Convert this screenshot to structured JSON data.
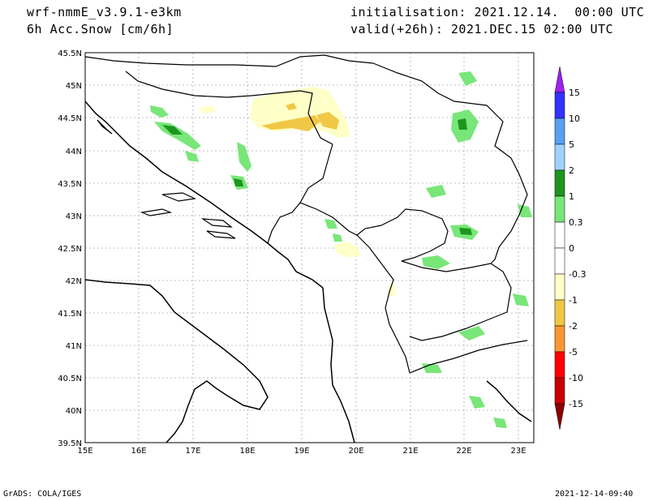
{
  "header": {
    "model": "wrf-nmmE_v3.9.1-e3km",
    "field": "6h Acc.Snow [cm/6h]",
    "init": "initialisation: 2021.12.14.  00:00 UTC",
    "valid": "valid(+26h): 2021.DEC.15 02:00 UTC"
  },
  "footer": {
    "credit": "GrADS: COLA/IGES",
    "timestamp": "2021-12-14-09:40"
  },
  "map": {
    "lat_labels": [
      "45.5N",
      "45N",
      "44.5N",
      "44N",
      "43.5N",
      "43N",
      "42.5N",
      "42N",
      "41.5N",
      "41N",
      "40.5N",
      "40N",
      "39.5N"
    ],
    "lon_labels": [
      "15E",
      "16E",
      "17E",
      "18E",
      "19E",
      "20E",
      "21E",
      "22E",
      "23E"
    ],
    "lat_range": [
      39.5,
      45.5
    ],
    "lon_range": [
      15,
      23.3
    ],
    "grid": true
  },
  "colorbar": {
    "labels": [
      "15",
      "10",
      "5",
      "2",
      "1",
      "0.3",
      "0",
      "-0.3",
      "-1",
      "-2",
      "-5",
      "-10",
      "-15"
    ],
    "colors": [
      "#a020f0",
      "#3232ff",
      "#5aa0f0",
      "#a0d2ff",
      "#1e961e",
      "#78e678",
      "#ffffff",
      "#ffffc8",
      "#f0c846",
      "#fa9632",
      "#ff0000",
      "#c80000",
      "#8c0000"
    ]
  }
}
